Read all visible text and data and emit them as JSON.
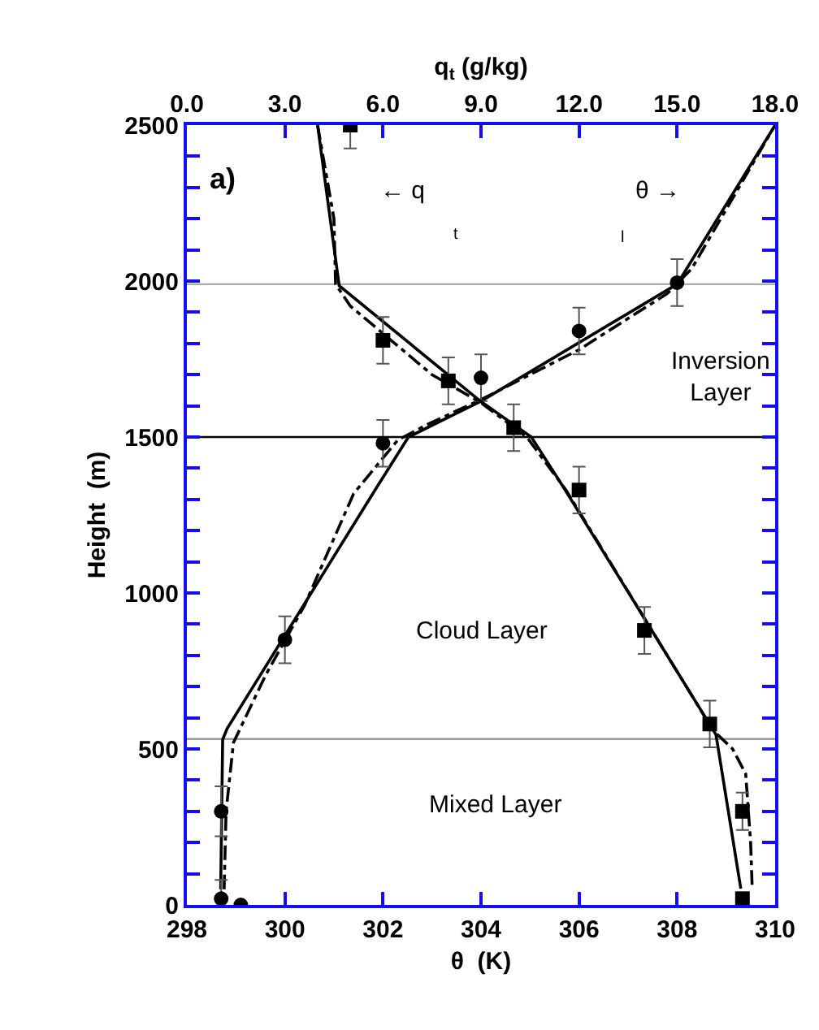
{
  "chart_data": {
    "type": "line",
    "xlabel": "θ  (K)",
    "x2label": "q$_{t}$ (g/kg)",
    "ylabel": "Height  (m)",
    "xlim": [
      298,
      310
    ],
    "xticks": [
      298,
      300,
      302,
      304,
      306,
      308,
      310
    ],
    "x2lim": [
      0,
      18
    ],
    "x2ticks": [
      {
        "value": 0,
        "label": "0.0"
      },
      {
        "value": 3,
        "label": "3.0"
      },
      {
        "value": 6,
        "label": "6.0"
      },
      {
        "value": 9,
        "label": "9.0"
      },
      {
        "value": 12,
        "label": "12.0"
      },
      {
        "value": 15,
        "label": "15.0"
      },
      {
        "value": 18,
        "label": "18.0"
      }
    ],
    "ylim": [
      0,
      2500
    ],
    "yticks": [
      0,
      {
        "value": 100,
        "label": null
      },
      {
        "value": 200,
        "label": null
      },
      {
        "value": 300,
        "label": null
      },
      {
        "value": 400,
        "label": null
      },
      500,
      {
        "value": 600,
        "label": null
      },
      {
        "value": 700,
        "label": null
      },
      {
        "value": 800,
        "label": null
      },
      {
        "value": 900,
        "label": null
      },
      1000,
      {
        "value": 1100,
        "label": null
      },
      {
        "value": 1200,
        "label": null
      },
      {
        "value": 1300,
        "label": null
      },
      {
        "value": 1400,
        "label": null
      },
      1500,
      {
        "value": 1600,
        "label": null
      },
      {
        "value": 1700,
        "label": null
      },
      {
        "value": 1800,
        "label": null
      },
      {
        "value": 1900,
        "label": null
      },
      2000,
      {
        "value": 2100,
        "label": null
      },
      {
        "value": 2200,
        "label": null
      },
      {
        "value": 2300,
        "label": null
      },
      {
        "value": 2400,
        "label": null
      },
      2500
    ],
    "grid": false,
    "legend": false,
    "series": [
      {
        "color": "#000000",
        "line_style": "solid",
        "marker": "none",
        "x": [
          298.69,
          298.73,
          298.82,
          301.87,
          302.52,
          304.0,
          308.0,
          310.0
        ],
        "values": [
          50,
          530,
          565,
          1338,
          1500,
          1615,
          1990,
          2500
        ]
      },
      {
        "color": "#000000",
        "line_style": "dashdot",
        "marker": "none",
        "x": [
          298.76,
          298.8,
          298.95,
          299.6,
          300.4,
          301.4,
          302.3,
          302.9,
          304.0,
          306.0,
          307.8,
          308.3,
          310.0
        ],
        "values": [
          50,
          300,
          520,
          735,
          960,
          1318,
          1490,
          1540,
          1620,
          1780,
          1960,
          2040,
          2500
        ]
      },
      {
        "axis": "x2",
        "color": "#000000",
        "line_style": "solid",
        "marker": "none",
        "x": [
          4.0,
          4.66,
          8.98,
          10.54,
          11.53,
          16.19,
          16.95
        ],
        "values": [
          2500,
          1985,
          1615,
          1500,
          1338,
          546,
          52
        ]
      },
      {
        "axis": "x2",
        "color": "#000000",
        "line_style": "dashdot",
        "marker": "none",
        "x": [
          4.0,
          4.5,
          4.55,
          5.0,
          7.5,
          9.0,
          10.4,
          11.6,
          16.1,
          16.7,
          17.1,
          17.25,
          17.3
        ],
        "values": [
          2500,
          2200,
          1990,
          1920,
          1700,
          1610,
          1500,
          1330,
          560,
          500,
          420,
          200,
          50
        ]
      },
      {
        "type": "scatter",
        "color": "#000000",
        "marker": "circle",
        "x": [
          298.7,
          298.7,
          299.1,
          300.0,
          302.0,
          304.0,
          306.0,
          308.0
        ],
        "values": [
          20,
          300,
          0,
          850,
          1480,
          1690,
          1840,
          1995
        ],
        "errors": [
          60,
          80,
          null,
          75,
          75,
          75,
          75,
          75
        ]
      },
      {
        "type": "scatter",
        "axis": "x2",
        "color": "#000000",
        "marker": "square",
        "x": [
          5.0,
          6.0,
          8.0,
          10.0,
          12.0,
          14.0,
          16.0,
          17.0,
          17.0
        ],
        "values": [
          2500,
          1810,
          1680,
          1530,
          1330,
          880,
          580,
          300,
          20
        ],
        "errors": [
          75,
          75,
          75,
          75,
          75,
          75,
          75,
          60,
          null
        ]
      }
    ],
    "ref_lines": [
      {
        "axis": "y",
        "value": 1990,
        "color": "#aaaaaa"
      },
      {
        "axis": "y",
        "value": 1500,
        "color": "#000000"
      },
      {
        "axis": "y",
        "value": 532,
        "color": "#999999"
      }
    ],
    "annotations": [
      "a)",
      "← q",
      "t",
      "θ →",
      "l",
      "Inversion\nLayer",
      "Cloud Layer",
      "Mixed Layer"
    ]
  }
}
